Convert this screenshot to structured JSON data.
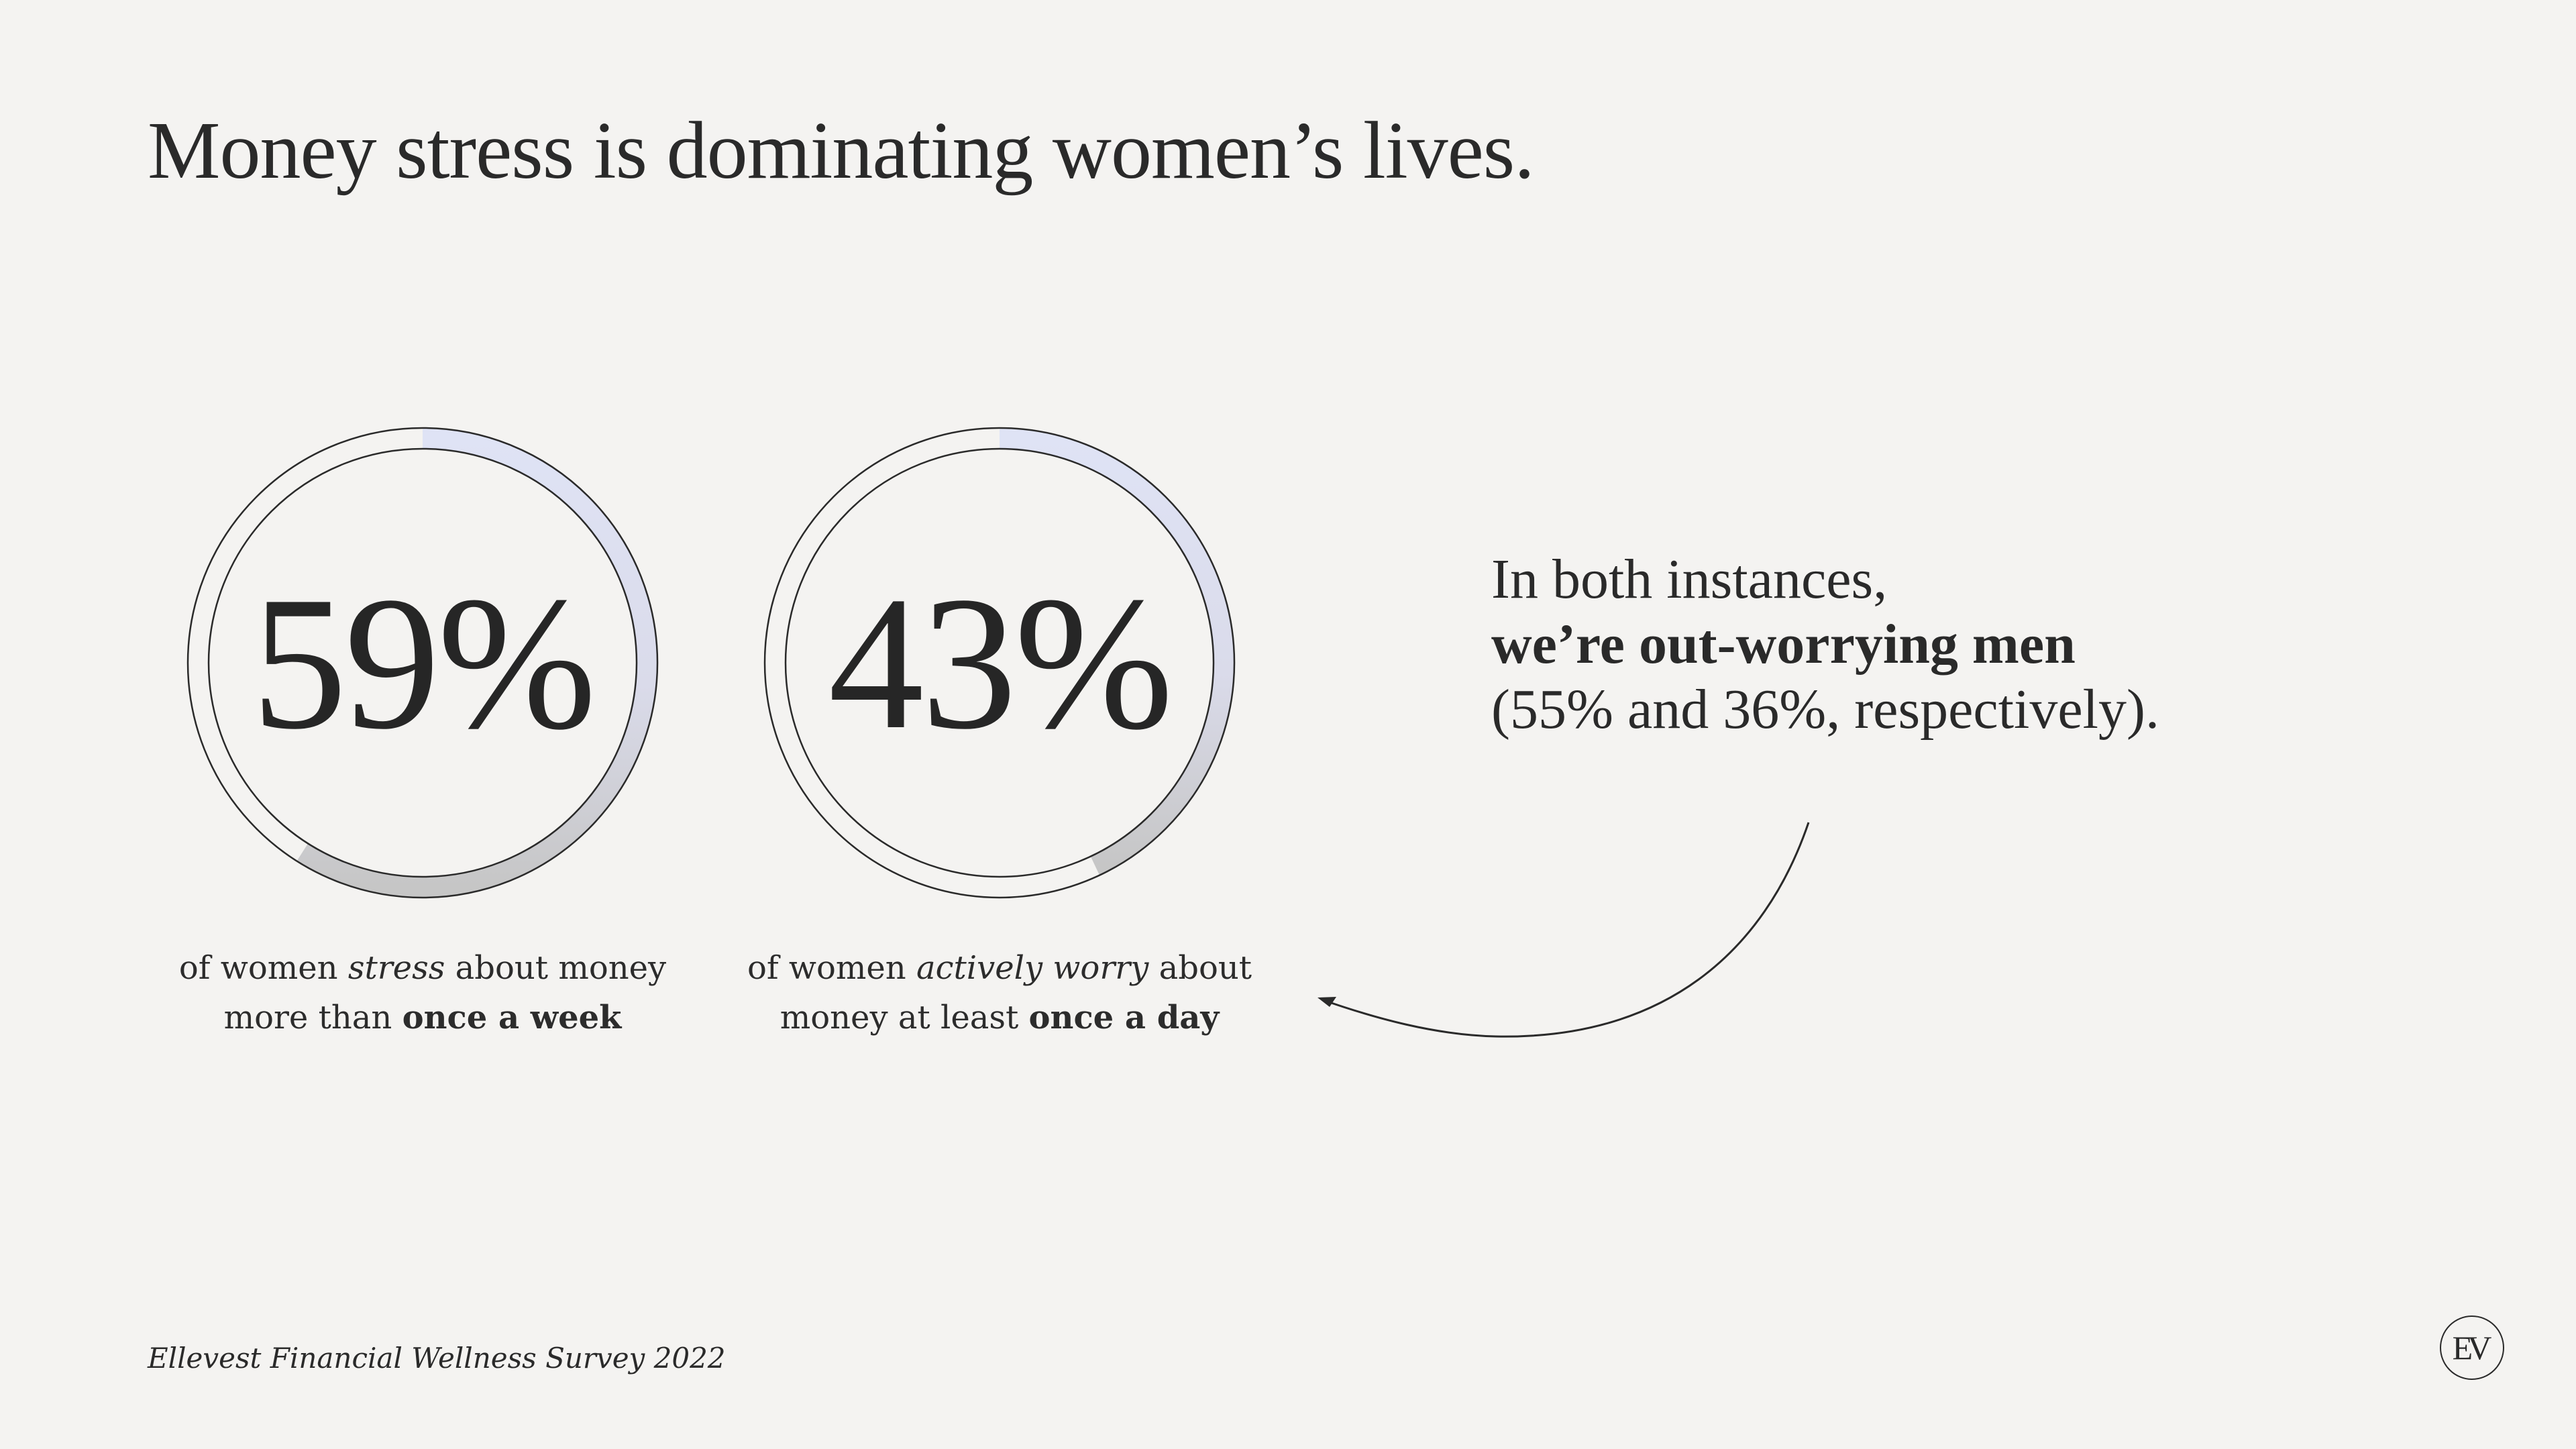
{
  "title": "Money stress is dominating women’s lives.",
  "chart_data": {
    "type": "gauge",
    "items": [
      {
        "value_label": "59%",
        "value": 59,
        "caption": {
          "part1": "of women ",
          "italic": "stress",
          "part2": " about money",
          "part3": "more than ",
          "bold": "once a week"
        }
      },
      {
        "value_label": "43%",
        "value": 43,
        "caption": {
          "part1": "of women ",
          "italic": "actively worry",
          "part2": " about",
          "part3": "money at least ",
          "bold": "once a day"
        }
      }
    ]
  },
  "callout": {
    "line1": "In both instances,",
    "line2_bold": "we’re out-worrying men",
    "line3": "(55% and 36%, respectively)."
  },
  "source": "Ellevest Financial Wellness Survey 2022",
  "logo": {
    "text": "EV"
  },
  "colors": {
    "background": "#f4f3f1",
    "text": "#262626",
    "arc_start": "#dfe3f5",
    "arc_mid": "#dcdcec",
    "arc_end": "#c8c8c8"
  }
}
